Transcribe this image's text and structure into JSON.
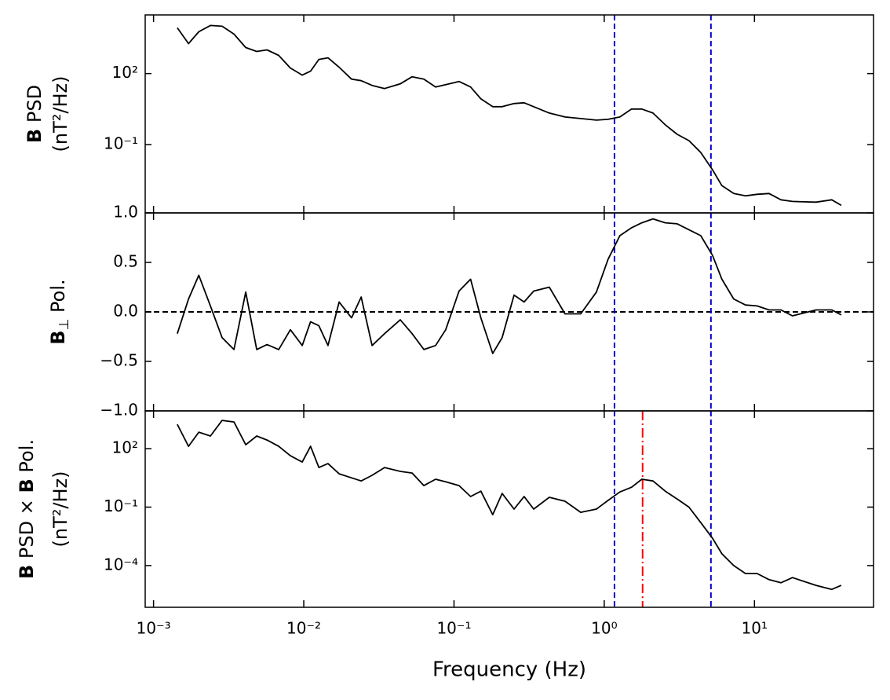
{
  "chart_data": [
    {
      "type": "line",
      "xscale": "log",
      "yscale": "log",
      "ylabel": [
        "B PSD",
        "(nT²/Hz)"
      ],
      "xlim": [
        0.00088,
        62
      ],
      "ylim": [
        0.00013,
        30000
      ],
      "xticks": [
        0.001,
        0.01,
        0.1,
        1,
        10
      ],
      "yticks": [
        {
          "value": 100,
          "label": "10²"
        },
        {
          "value": 0.1,
          "label": "10⁻¹"
        }
      ],
      "color": "#000000",
      "x": [
        0.00144,
        0.00171,
        0.002,
        0.00239,
        0.00286,
        0.00343,
        0.00411,
        0.00486,
        0.00569,
        0.00681,
        0.00815,
        0.00977,
        0.0111,
        0.0126,
        0.0145,
        0.0172,
        0.0208,
        0.0241,
        0.0285,
        0.0345,
        0.0439,
        0.0526,
        0.063,
        0.0754,
        0.0881,
        0.108,
        0.129,
        0.151,
        0.181,
        0.209,
        0.251,
        0.293,
        0.339,
        0.431,
        0.548,
        0.697,
        0.887,
        1.06,
        1.27,
        1.52,
        1.78,
        2.11,
        2.55,
        3.06,
        3.66,
        4.39,
        5.26,
        6.07,
        7.28,
        8.71,
        10.4,
        12.5,
        15.0,
        17.9,
        25.7,
        32.7,
        37.8
      ],
      "values": [
        8580,
        1850,
        5850,
        10800,
        10000,
        4640,
        1260,
        857,
        1000,
        585,
        171,
        85.8,
        126,
        398,
        464,
        185,
        58.5,
        50.1,
        31.6,
        23.3,
        36.9,
        73.6,
        58.5,
        27.1,
        34.1,
        46.4,
        27.1,
        8.58,
        3.98,
        3.98,
        5.41,
        5.85,
        3.98,
        2.15,
        1.47,
        1.26,
        1.08,
        1.17,
        1.47,
        3.16,
        3.16,
        2.15,
        0.681,
        0.271,
        0.147,
        0.0464,
        0.00858,
        0.00185,
        0.000858,
        0.000681,
        0.000794,
        0.000858,
        0.000464,
        0.000398,
        0.000369,
        0.000464,
        0.000271
      ],
      "vlines": [
        {
          "x": 1.17,
          "color": "#0000cc",
          "style": "dashed"
        },
        {
          "x": 5.13,
          "color": "#0000cc",
          "style": "dashed"
        }
      ]
    },
    {
      "type": "line",
      "xscale": "log",
      "yscale": "linear",
      "ylabel": [
        "B⊥ Pol."
      ],
      "xlim": [
        0.00088,
        62
      ],
      "ylim": [
        -1,
        1
      ],
      "xticks": [
        0.001,
        0.01,
        0.1,
        1,
        10
      ],
      "yticks": [
        {
          "value": -1,
          "label": "−1.0"
        },
        {
          "value": -0.5,
          "label": "−0.5"
        },
        {
          "value": 0,
          "label": "0.0"
        },
        {
          "value": 0.5,
          "label": "0.5"
        },
        {
          "value": 1,
          "label": "1.0"
        }
      ],
      "color": "#000000",
      "x": [
        0.00144,
        0.00171,
        0.002,
        0.00239,
        0.00286,
        0.00343,
        0.00411,
        0.00486,
        0.00569,
        0.00681,
        0.00815,
        0.00977,
        0.0111,
        0.0126,
        0.0145,
        0.0172,
        0.0208,
        0.0241,
        0.0285,
        0.0345,
        0.0439,
        0.0526,
        0.063,
        0.0754,
        0.0881,
        0.108,
        0.129,
        0.151,
        0.181,
        0.209,
        0.251,
        0.293,
        0.339,
        0.431,
        0.548,
        0.697,
        0.887,
        1.06,
        1.27,
        1.52,
        1.78,
        2.11,
        2.55,
        3.06,
        3.66,
        4.39,
        5.26,
        6.07,
        7.28,
        8.71,
        10.4,
        12.5,
        15.0,
        17.9,
        25.7,
        32.7,
        37.8
      ],
      "values": [
        -0.22,
        0.13,
        0.37,
        0.06,
        -0.26,
        -0.38,
        0.2,
        -0.38,
        -0.33,
        -0.38,
        -0.18,
        -0.34,
        -0.1,
        -0.14,
        -0.34,
        0.1,
        -0.06,
        0.15,
        -0.34,
        -0.22,
        -0.08,
        -0.22,
        -0.38,
        -0.34,
        -0.18,
        0.21,
        0.33,
        -0.06,
        -0.42,
        -0.26,
        0.17,
        0.1,
        0.21,
        0.25,
        -0.02,
        -0.02,
        0.2,
        0.53,
        0.77,
        0.85,
        0.9,
        0.94,
        0.9,
        0.89,
        0.83,
        0.77,
        0.57,
        0.33,
        0.13,
        0.07,
        0.06,
        0.02,
        0.02,
        -0.04,
        0.02,
        0.02,
        -0.03
      ],
      "hline": {
        "y": 0,
        "color": "#000000",
        "style": "dashed"
      },
      "vlines": [
        {
          "x": 1.17,
          "color": "#0000cc",
          "style": "dashed"
        },
        {
          "x": 5.13,
          "color": "#0000cc",
          "style": "dashed"
        }
      ]
    },
    {
      "type": "line",
      "xscale": "log",
      "yscale": "log",
      "ylabel": [
        "B PSD × B Pol.",
        "(nT²/Hz)"
      ],
      "xlabel": "Frequency (Hz)",
      "xlim": [
        0.00088,
        62
      ],
      "ylim": [
        7.2e-07,
        8700
      ],
      "xticks": [
        {
          "value": 0.001,
          "label": "10⁻³"
        },
        {
          "value": 0.01,
          "label": "10⁻²"
        },
        {
          "value": 0.1,
          "label": "10⁻¹"
        },
        {
          "value": 1,
          "label": "10⁰"
        },
        {
          "value": 10,
          "label": "10¹"
        }
      ],
      "yticks": [
        {
          "value": 100,
          "label": "10²"
        },
        {
          "value": 0.1,
          "label": "10⁻¹"
        },
        {
          "value": 0.0001,
          "label": "10⁻⁴"
        }
      ],
      "color": "#000000",
      "x": [
        0.00144,
        0.00171,
        0.002,
        0.00239,
        0.00286,
        0.00343,
        0.00411,
        0.00486,
        0.00569,
        0.00681,
        0.00815,
        0.00977,
        0.0111,
        0.0126,
        0.0145,
        0.0172,
        0.0208,
        0.0241,
        0.0285,
        0.0345,
        0.0439,
        0.0526,
        0.063,
        0.0754,
        0.0881,
        0.108,
        0.129,
        0.151,
        0.181,
        0.209,
        0.251,
        0.293,
        0.339,
        0.431,
        0.548,
        0.697,
        0.887,
        1.06,
        1.27,
        1.52,
        1.78,
        2.11,
        2.55,
        3.06,
        3.66,
        4.39,
        5.26,
        6.07,
        7.28,
        8.71,
        10.4,
        12.5,
        15.0,
        17.9,
        25.7,
        32.7,
        37.8
      ],
      "values": [
        1780,
        132,
        700,
        445,
        2820,
        2350,
        159,
        445,
        277,
        132,
        43.4,
        20.6,
        132,
        10.8,
        17.1,
        5.1,
        3.2,
        2.2,
        4.3,
        10.8,
        6.8,
        5.6,
        1.27,
        2.7,
        2.0,
        1.27,
        0.35,
        0.66,
        0.041,
        0.5,
        0.079,
        0.35,
        0.079,
        0.32,
        0.2,
        0.054,
        0.079,
        0.22,
        0.6,
        1.05,
        2.7,
        2.2,
        0.66,
        0.26,
        0.1,
        0.016,
        0.0025,
        0.0004,
        0.0001,
        3.9e-05,
        3.9e-05,
        1.9e-05,
        1.3e-05,
        2.4e-05,
        9.6e-06,
        6e-06,
        9.6e-06
      ],
      "vlines": [
        {
          "x": 1.17,
          "color": "#0000cc",
          "style": "dashed"
        },
        {
          "x": 5.13,
          "color": "#0000cc",
          "style": "dashed"
        },
        {
          "x": 1.8,
          "color": "#ff0000",
          "style": "dashdot"
        }
      ]
    }
  ]
}
